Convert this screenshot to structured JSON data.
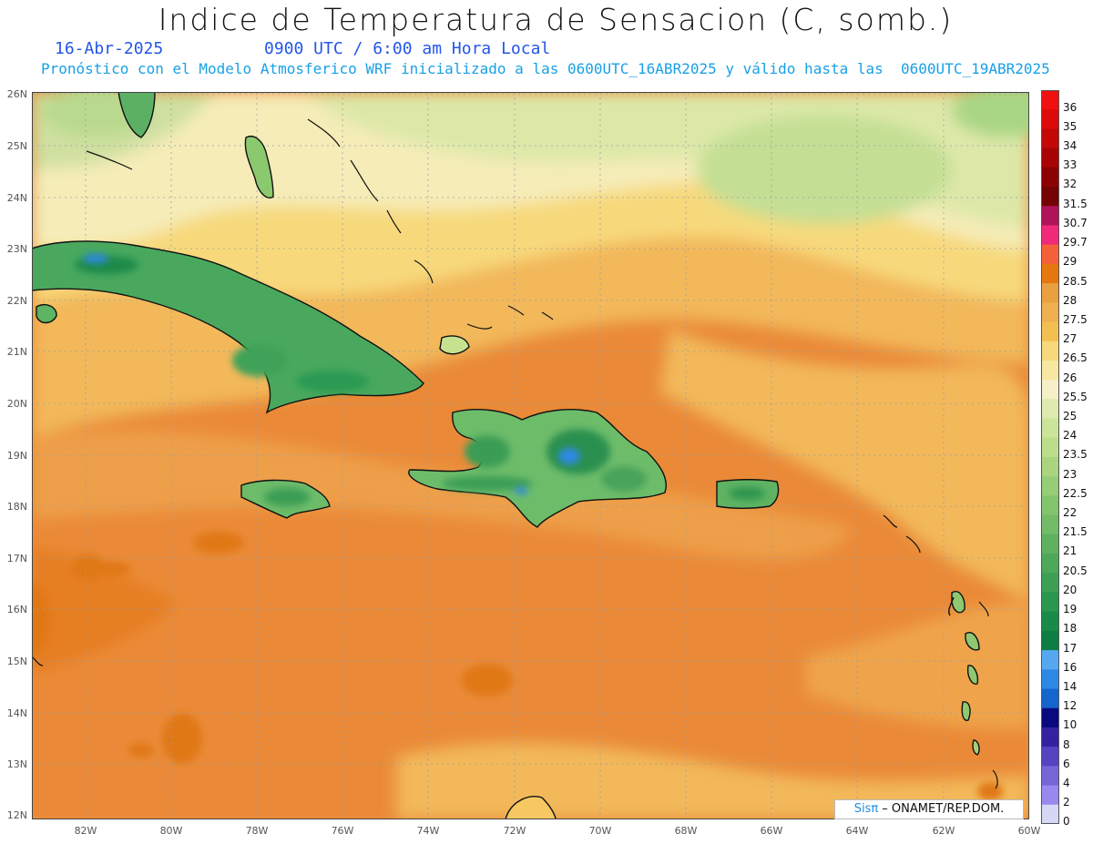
{
  "header": {
    "title": "Indice de Temperatura de Sensacion (C, somb.)",
    "date": "16-Abr-2025",
    "time": "0900 UTC / 6:00 am Hora Local",
    "forecast": "Pronóstico con el Modelo Atmosferico WRF inicializado a las 0600UTC_16ABR2025 y válido hasta las  0600UTC_19ABR2025"
  },
  "map": {
    "lat_labels": [
      "26N",
      "25N",
      "24N",
      "23N",
      "22N",
      "21N",
      "20N",
      "19N",
      "18N",
      "17N",
      "16N",
      "15N",
      "14N",
      "13N",
      "12N"
    ],
    "lon_labels": [
      "82W",
      "80W",
      "78W",
      "76W",
      "74W",
      "72W",
      "70W",
      "68W",
      "66W",
      "64W",
      "62W",
      "60W"
    ]
  },
  "colorbar": {
    "labels": [
      "36",
      "35",
      "34",
      "33",
      "32",
      "31.5",
      "30.7",
      "29.7",
      "29",
      "28.5",
      "28",
      "27.5",
      "27",
      "26.5",
      "26",
      "25.5",
      "25",
      "24",
      "23.5",
      "23",
      "22.5",
      "22",
      "21.5",
      "21",
      "20.5",
      "20",
      "19",
      "18",
      "17",
      "16",
      "14",
      "12",
      "10",
      "8",
      "6",
      "4",
      "2",
      "0"
    ],
    "colors": [
      "#f01010",
      "#dd0a0a",
      "#c40707",
      "#a80404",
      "#8c0202",
      "#740404",
      "#b0135a",
      "#f02a78",
      "#f5603a",
      "#e57810",
      "#e8a040",
      "#eeb050",
      "#f2c050",
      "#f7d97c",
      "#f7e7a0",
      "#f5f0c8",
      "#ddeab0",
      "#cbe49a",
      "#bcdd8a",
      "#aad57e",
      "#97cd77",
      "#84c46f",
      "#72bb67",
      "#5fb160",
      "#4da85a",
      "#3c9f54",
      "#2a964e",
      "#1a8a48",
      "#0e7d42",
      "#55a8f0",
      "#2e88e6",
      "#1565cf",
      "#0a0a80",
      "#3322a0",
      "#5544c0",
      "#7766d8",
      "#9988ee",
      "#d4d8f4"
    ]
  },
  "credit": {
    "sis": "Sisπ",
    "org": " – ONAMET/REP.DOM."
  }
}
